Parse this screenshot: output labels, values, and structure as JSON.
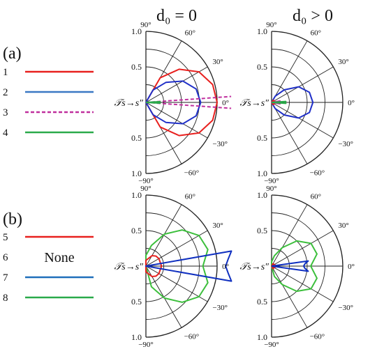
{
  "headers": {
    "col1": "d₀ = 0",
    "col2": "d₀ > 0"
  },
  "panel_tags": {
    "a": "(a)",
    "b": "(b)"
  },
  "legend": {
    "a": [
      {
        "num": "1",
        "color": "#e8201e",
        "style": "solid"
      },
      {
        "num": "2",
        "color": "#3a78c4",
        "style": "solid"
      },
      {
        "num": "3",
        "color": "#c0309e",
        "style": "dashed"
      },
      {
        "num": "4",
        "color": "#2aaa4a",
        "style": "solid"
      }
    ],
    "b": [
      {
        "num": "5",
        "color": "#e8201e",
        "style": "solid"
      },
      {
        "num": "6",
        "color": "",
        "style": "none",
        "note": "None"
      },
      {
        "num": "7",
        "color": "#1f6fba",
        "style": "solid"
      },
      {
        "num": "8",
        "color": "#2aaa4a",
        "style": "solid"
      }
    ]
  },
  "polar_labels": {
    "angles": [
      "90°",
      "60°",
      "30°",
      "0°",
      "−30°",
      "−60°",
      "−90°"
    ],
    "radial_upper": [
      "1.0",
      "0.5"
    ],
    "radial_lower": [
      "0.5",
      "1.0"
    ],
    "tau": "𝒯s→s″"
  },
  "chart_data": [
    {
      "type": "polar",
      "panel": "a",
      "column": "d₀ = 0",
      "theta_range_deg": [
        -90,
        90
      ],
      "r_range": [
        0,
        1.0
      ],
      "grid": true,
      "series": [
        {
          "curve": "1",
          "color": "#e8201e",
          "dash": false,
          "points": [
            [
              -90,
              0
            ],
            [
              -60,
              0.4
            ],
            [
              -45,
              0.66
            ],
            [
              -30,
              0.86
            ],
            [
              -15,
              0.97
            ],
            [
              0,
              1.0
            ],
            [
              15,
              0.97
            ],
            [
              30,
              0.86
            ],
            [
              45,
              0.66
            ],
            [
              60,
              0.4
            ],
            [
              90,
              0
            ]
          ]
        },
        {
          "curve": "2 (blue)",
          "color": "#2030c8",
          "dash": false,
          "points": [
            [
              -90,
              0
            ],
            [
              -60,
              0.2
            ],
            [
              -45,
              0.4
            ],
            [
              -30,
              0.6
            ],
            [
              -15,
              0.73
            ],
            [
              0,
              0.77
            ],
            [
              15,
              0.73
            ],
            [
              30,
              0.6
            ],
            [
              45,
              0.4
            ],
            [
              60,
              0.2
            ],
            [
              90,
              0
            ]
          ]
        },
        {
          "curve": "3",
          "color": "#c0309e",
          "dash": true,
          "points": [
            [
              -4,
              1.2
            ],
            [
              0,
              0.9
            ],
            [
              4,
              1.2
            ]
          ]
        },
        {
          "curve": "4",
          "color": "#2aaa4a",
          "dash": false,
          "points": [
            [
              -3,
              0.2
            ],
            [
              0,
              0.17
            ],
            [
              3,
              0.2
            ]
          ]
        }
      ]
    },
    {
      "type": "polar",
      "panel": "a",
      "column": "d₀ > 0",
      "theta_range_deg": [
        -90,
        90
      ],
      "r_range": [
        0,
        1.0
      ],
      "grid": true,
      "series": [
        {
          "curve": "2 (blue)",
          "color": "#2030c8",
          "dash": false,
          "points": [
            [
              -90,
              0
            ],
            [
              -60,
              0.1
            ],
            [
              -45,
              0.25
            ],
            [
              -30,
              0.44
            ],
            [
              -15,
              0.55
            ],
            [
              0,
              0.58
            ],
            [
              15,
              0.55
            ],
            [
              30,
              0.44
            ],
            [
              45,
              0.25
            ],
            [
              60,
              0.1
            ],
            [
              90,
              0
            ]
          ]
        },
        {
          "curve": "1",
          "color": "#e8201e",
          "dash": false,
          "points": [
            [
              -50,
              0.04
            ],
            [
              0,
              0.06
            ],
            [
              50,
              0.04
            ]
          ]
        },
        {
          "curve": "3",
          "color": "#c0309e",
          "dash": false,
          "points": [
            [
              -10,
              0.12
            ],
            [
              0,
              0.12
            ],
            [
              10,
              0.12
            ]
          ]
        },
        {
          "curve": "4",
          "color": "#2aaa4a",
          "dash": false,
          "points": [
            [
              -4,
              0.2
            ],
            [
              0,
              0.19
            ],
            [
              4,
              0.2
            ]
          ]
        }
      ]
    },
    {
      "type": "polar",
      "panel": "b",
      "column": "d₀ = 0",
      "theta_range_deg": [
        -90,
        90
      ],
      "r_range": [
        0,
        1.0
      ],
      "grid": true,
      "series": [
        {
          "curve": "8",
          "color": "#3cbf3c",
          "dash": false,
          "points": [
            [
              -75,
              0.3
            ],
            [
              -60,
              0.52
            ],
            [
              -45,
              0.72
            ],
            [
              -30,
              0.86
            ],
            [
              -15,
              0.9
            ],
            [
              0,
              0.8
            ],
            [
              15,
              0.9
            ],
            [
              30,
              0.86
            ],
            [
              45,
              0.72
            ],
            [
              60,
              0.52
            ],
            [
              75,
              0.3
            ],
            [
              90,
              0.15
            ]
          ]
        },
        {
          "curve": "5",
          "color": "#e8201e",
          "dash": false,
          "points": [
            [
              -90,
              0.08
            ],
            [
              -60,
              0.17
            ],
            [
              -45,
              0.2
            ],
            [
              -30,
              0.21
            ],
            [
              0,
              0.22
            ],
            [
              30,
              0.21
            ],
            [
              45,
              0.2
            ],
            [
              60,
              0.17
            ],
            [
              90,
              0.08
            ]
          ]
        },
        {
          "curve": "7",
          "color": "#1030c0",
          "dash": false,
          "points": [
            [
              -10,
              1.22
            ],
            [
              -5,
              1.16
            ],
            [
              0,
              1.12
            ],
            [
              5,
              1.16
            ],
            [
              10,
              1.22
            ]
          ]
        }
      ]
    },
    {
      "type": "polar",
      "panel": "b",
      "column": "d₀ > 0",
      "theta_range_deg": [
        -90,
        90
      ],
      "r_range": [
        0,
        1.0
      ],
      "grid": true,
      "series": [
        {
          "curve": "8",
          "color": "#3cbf3c",
          "dash": false,
          "points": [
            [
              -75,
              0.15
            ],
            [
              -60,
              0.3
            ],
            [
              -45,
              0.5
            ],
            [
              -30,
              0.64
            ],
            [
              -15,
              0.66
            ],
            [
              0,
              0.55
            ],
            [
              15,
              0.66
            ],
            [
              30,
              0.64
            ],
            [
              45,
              0.5
            ],
            [
              60,
              0.3
            ],
            [
              75,
              0.15
            ],
            [
              90,
              0.06
            ]
          ]
        },
        {
          "curve": "5",
          "color": "#e8201e",
          "dash": false,
          "points": [
            [
              -60,
              0.04
            ],
            [
              0,
              0.07
            ],
            [
              60,
              0.04
            ]
          ]
        },
        {
          "curve": "7",
          "color": "#1030c0",
          "dash": false,
          "points": [
            [
              -8,
              0.52
            ],
            [
              -4,
              0.47
            ],
            [
              0,
              0.45
            ],
            [
              4,
              0.47
            ],
            [
              8,
              0.52
            ]
          ]
        }
      ]
    }
  ]
}
